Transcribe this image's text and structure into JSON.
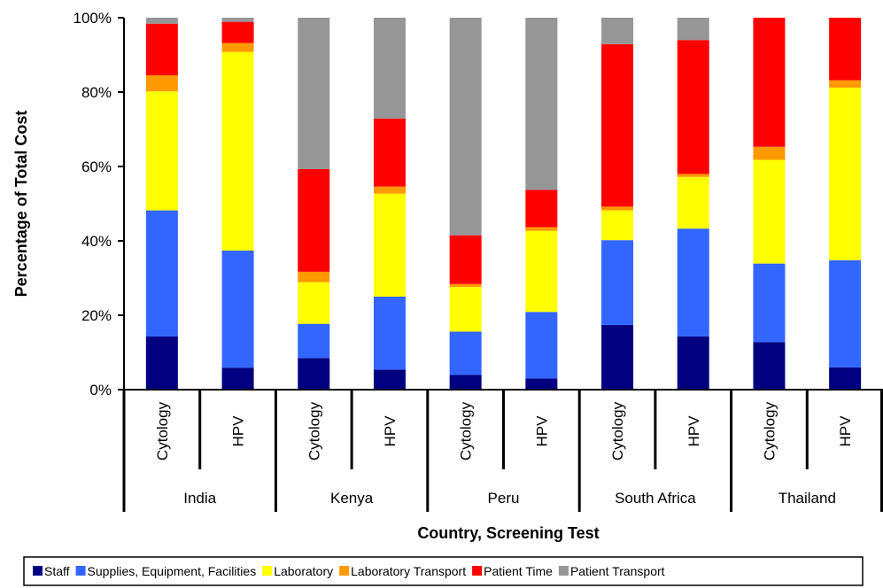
{
  "chart_data": {
    "type": "bar",
    "stacked": true,
    "percent_stacked": true,
    "title": "",
    "xlabel": "Country, Screening Test",
    "ylabel": "Percentage of Total Cost",
    "ylim": [
      0,
      100
    ],
    "yticks": [
      "0%",
      "20%",
      "40%",
      "60%",
      "80%",
      "100%"
    ],
    "grid": false,
    "legend_position": "bottom",
    "groups": [
      "India",
      "Kenya",
      "Peru",
      "South Africa",
      "Thailand"
    ],
    "categories": [
      "Cytology",
      "HPV",
      "Cytology",
      "HPV",
      "Cytology",
      "HPV",
      "Cytology",
      "HPV",
      "Cytology",
      "HPV"
    ],
    "series": [
      {
        "name": "Staff",
        "color": "#000080",
        "values": [
          14.3,
          5.9,
          8.5,
          5.4,
          4.0,
          3.0,
          17.4,
          14.3,
          12.8,
          6.0
        ]
      },
      {
        "name": "Supplies, Equipment, Facilities",
        "color": "#3366FF",
        "values": [
          33.9,
          31.5,
          9.2,
          19.6,
          11.6,
          17.9,
          22.8,
          29.0,
          21.1,
          28.8
        ]
      },
      {
        "name": "Laboratory",
        "color": "#FFFF00",
        "values": [
          32.0,
          53.4,
          11.2,
          27.7,
          12.0,
          21.8,
          8.0,
          13.9,
          27.9,
          46.4
        ]
      },
      {
        "name": "Laboratory Transport",
        "color": "#FF9900",
        "values": [
          4.3,
          2.4,
          2.8,
          1.9,
          0.8,
          1.0,
          1.0,
          0.8,
          3.5,
          2.0
        ]
      },
      {
        "name": "Patient Time",
        "color": "#FF0000",
        "values": [
          13.9,
          5.7,
          27.6,
          18.3,
          13.1,
          10.0,
          43.7,
          36.0,
          34.7,
          16.8
        ]
      },
      {
        "name": "Patient Transport",
        "color": "#969696",
        "values": [
          1.6,
          1.1,
          40.7,
          27.1,
          58.5,
          46.3,
          7.1,
          6.0,
          0.0,
          0.0
        ]
      }
    ]
  }
}
